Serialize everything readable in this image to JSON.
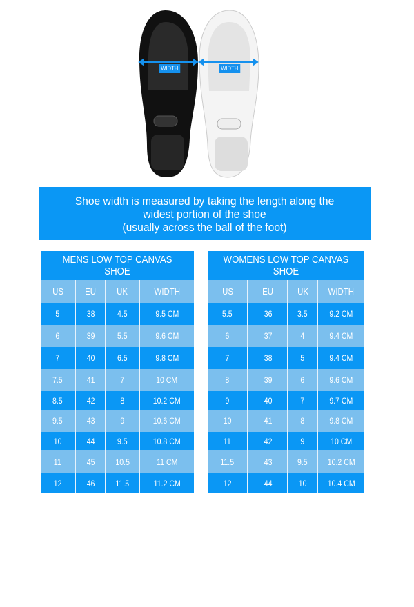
{
  "image": {
    "width_label_left": "WIDTH",
    "width_label_right": "WIDTH"
  },
  "banner": {
    "lines": [
      "Shoe width is measured by taking the length along the",
      "widest portion of the shoe",
      "(usually across the ball of the foot)"
    ]
  },
  "colors": {
    "dark_row": "#0a97f5",
    "light_row": "#7bbfee",
    "arrow": "#1591ee"
  },
  "mens": {
    "title": "MENS LOW TOP CANVAS SHOE",
    "headers": [
      "US",
      "EU",
      "UK",
      "WIDTH"
    ],
    "rows": [
      [
        "5",
        "38",
        "4.5",
        "9.5 CM"
      ],
      [
        "6",
        "39",
        "5.5",
        "9.6 CM"
      ],
      [
        "7",
        "40",
        "6.5",
        "9.8 CM"
      ],
      [
        "7.5",
        "41",
        "7",
        "10 CM"
      ],
      [
        "8.5",
        "42",
        "8",
        "10.2 CM"
      ],
      [
        "9.5",
        "43",
        "9",
        "10.6 CM"
      ],
      [
        "10",
        "44",
        "9.5",
        "10.8 CM"
      ],
      [
        "11",
        "45",
        "10.5",
        "11 CM"
      ],
      [
        "12",
        "46",
        "11.5",
        "11.2 CM"
      ]
    ]
  },
  "womens": {
    "title": "WOMENS LOW TOP CANVAS SHOE",
    "headers": [
      "US",
      "EU",
      "UK",
      "WIDTH"
    ],
    "rows": [
      [
        "5.5",
        "36",
        "3.5",
        "9.2 CM"
      ],
      [
        "6",
        "37",
        "4",
        "9.4 CM"
      ],
      [
        "7",
        "38",
        "5",
        "9.4 CM"
      ],
      [
        "8",
        "39",
        "6",
        "9.6 CM"
      ],
      [
        "9",
        "40",
        "7",
        "9.7 CM"
      ],
      [
        "10",
        "41",
        "8",
        "9.8 CM"
      ],
      [
        "11",
        "42",
        "9",
        "10 CM"
      ],
      [
        "11.5",
        "43",
        "9.5",
        "10.2 CM"
      ],
      [
        "12",
        "44",
        "10",
        "10.4 CM"
      ]
    ]
  }
}
